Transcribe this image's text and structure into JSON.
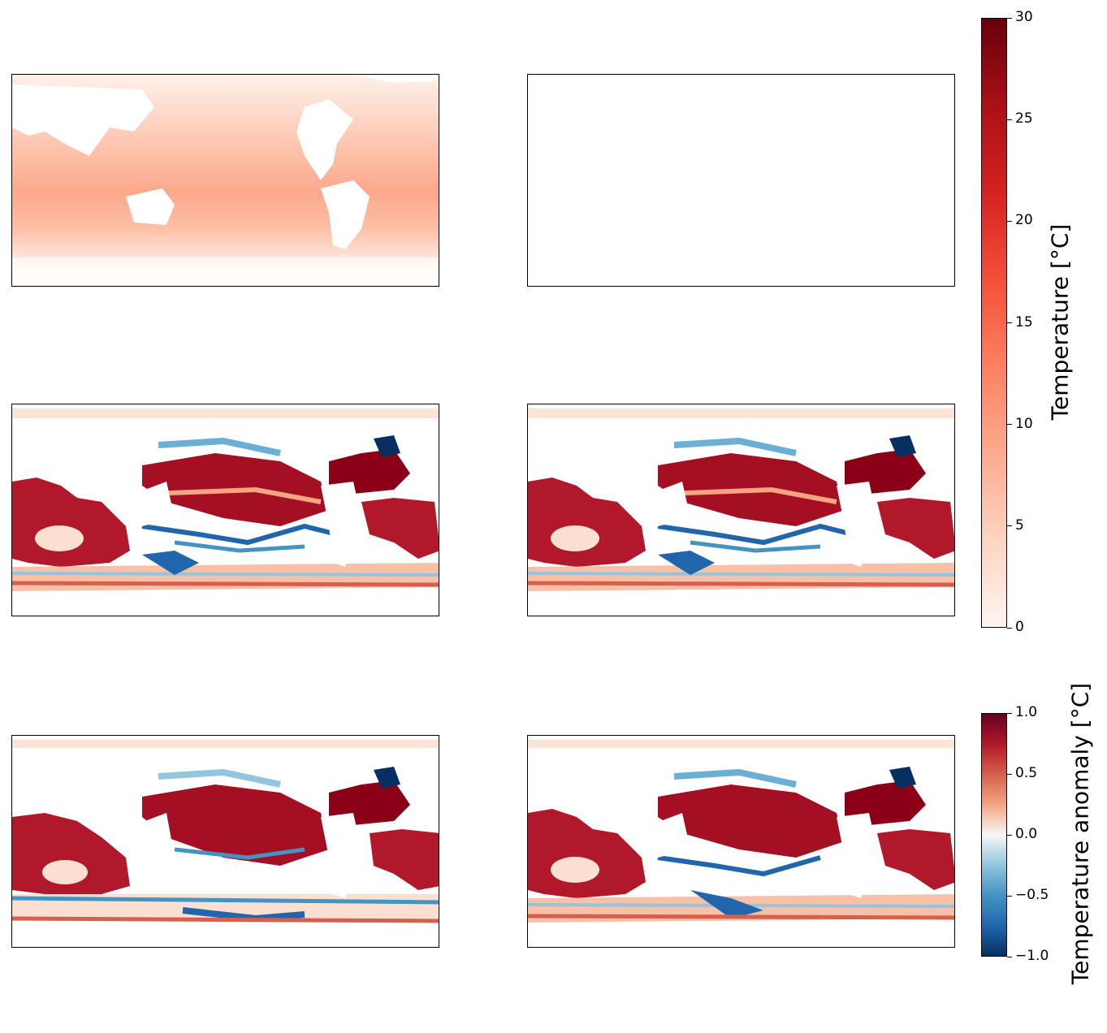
{
  "panels": [
    {
      "id": "top-left",
      "field": "temperature"
    },
    {
      "id": "top-right",
      "field": "empty"
    },
    {
      "id": "middle-left",
      "field": "anomaly"
    },
    {
      "id": "middle-right",
      "field": "anomaly"
    },
    {
      "id": "bottom-left",
      "field": "anomaly"
    },
    {
      "id": "bottom-right",
      "field": "anomaly"
    }
  ],
  "colorbars": [
    {
      "id": "temperature",
      "label": "Temperature [°C]",
      "min": 0,
      "max": 30,
      "ticks": [
        "0",
        "5",
        "10",
        "15",
        "20",
        "25",
        "30"
      ],
      "colors": [
        "#fff5f0",
        "#fdd4c2",
        "#fcaa8e",
        "#fc8161",
        "#f44f39",
        "#d52221",
        "#aa1016",
        "#67000d"
      ]
    },
    {
      "id": "anomaly",
      "label": "Temperature anomaly [°C]",
      "min": -1,
      "max": 1,
      "ticks": [
        "−1.0",
        "−0.5",
        "0.0",
        "0.5",
        "1.0"
      ],
      "colors": [
        "#053061",
        "#2166ac",
        "#4393c3",
        "#92c5de",
        "#f7f7f7",
        "#f4a582",
        "#d6604d",
        "#b2182b",
        "#67001f"
      ]
    }
  ]
}
